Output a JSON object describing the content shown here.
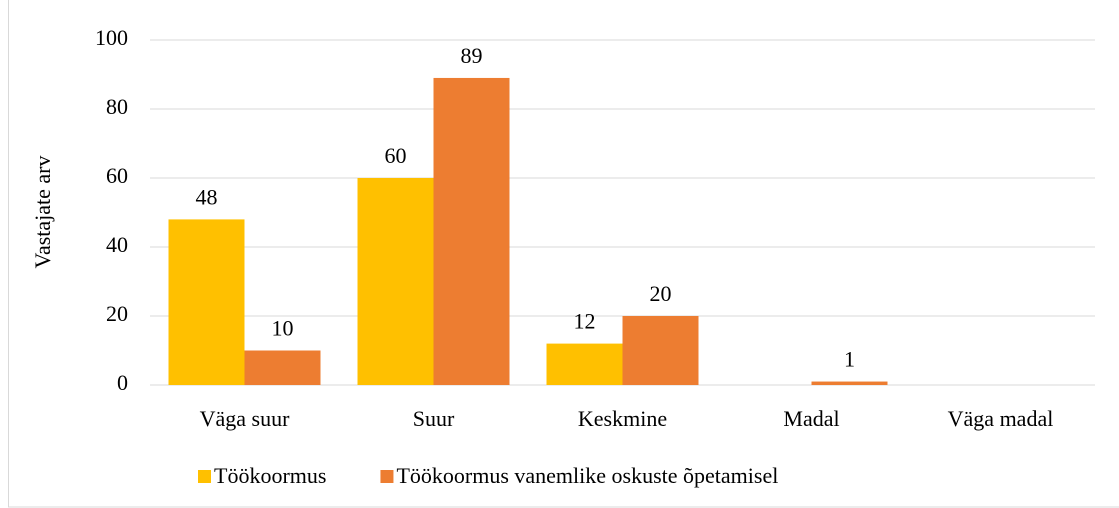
{
  "chart_data": {
    "type": "bar",
    "categories": [
      "Väga suur",
      "Suur",
      "Keskmine",
      "Madal",
      "Väga madal"
    ],
    "series": [
      {
        "name": "Töökoormus",
        "color": "#FFC000",
        "values": [
          48,
          60,
          12,
          null,
          null
        ]
      },
      {
        "name": "Töökoormus vanemlike oskuste õpetamisel",
        "color": "#ED7D31",
        "values": [
          10,
          89,
          20,
          1,
          null
        ]
      }
    ],
    "y_label": "Vastajate arv",
    "ylim": [
      0,
      100
    ],
    "yticks": [
      0,
      20,
      40,
      60,
      80,
      100
    ],
    "grid": true,
    "legend": "bottom"
  }
}
